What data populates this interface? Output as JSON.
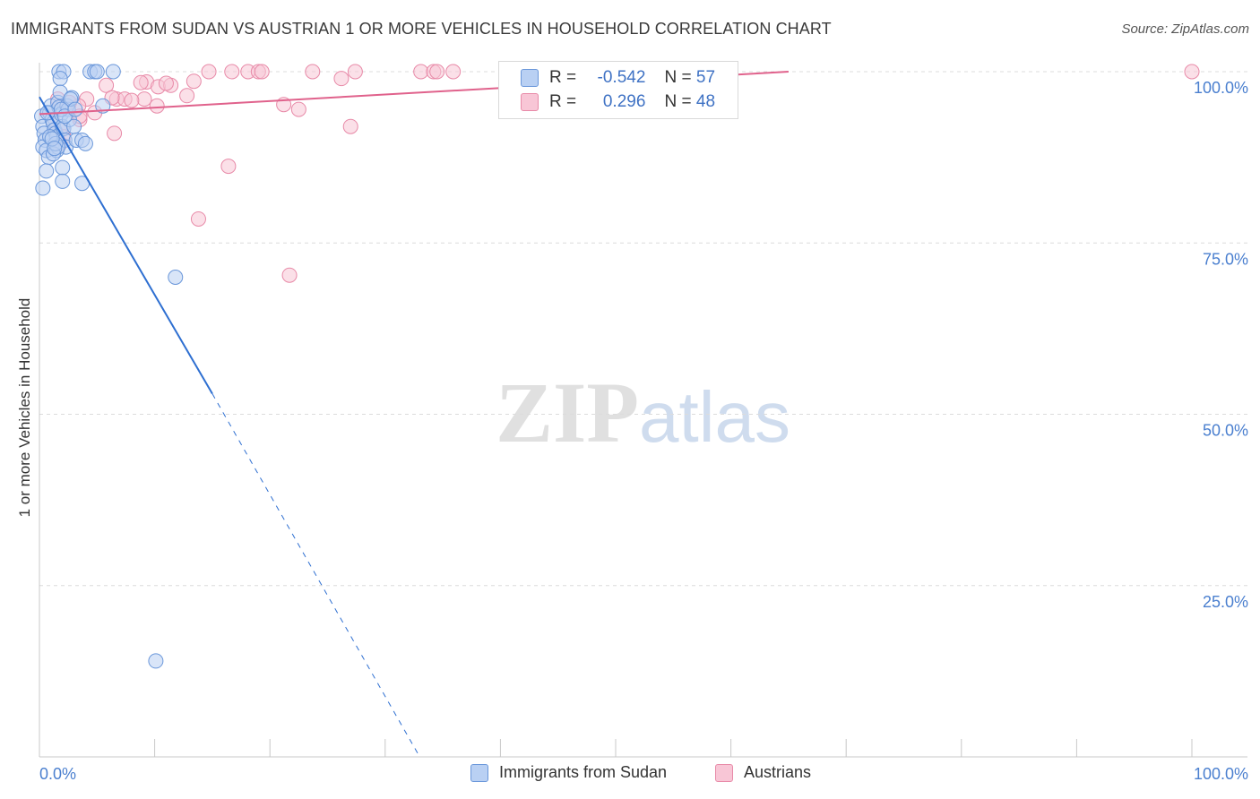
{
  "title": "IMMIGRANTS FROM SUDAN VS AUSTRIAN 1 OR MORE VEHICLES IN HOUSEHOLD CORRELATION CHART",
  "source": "Source: ZipAtlas.com",
  "watermark": {
    "zip": "ZIP",
    "atlas": "atlas"
  },
  "colors": {
    "blue_fill": "#b9d0f3",
    "blue_stroke": "#6a97da",
    "blue_line": "#2e6fd1",
    "pink_fill": "#f8c6d6",
    "pink_stroke": "#e88aa8",
    "pink_line": "#e0628c",
    "tick_text": "#4a7fcf",
    "grid": "#dcdcdc"
  },
  "stats_box": {
    "rows": [
      {
        "r_label": "R =",
        "r_value": "-0.542",
        "n_label": "N =",
        "n_value": "57",
        "series": "blue"
      },
      {
        "r_label": "R =",
        "r_value": "0.296",
        "n_label": "N =",
        "n_value": "48",
        "series": "pink"
      }
    ]
  },
  "chart_data": {
    "type": "scatter",
    "title": "IMMIGRANTS FROM SUDAN VS AUSTRIAN 1 OR MORE VEHICLES IN HOUSEHOLD CORRELATION CHART",
    "xlabel": "",
    "ylabel": "1 or more Vehicles in Household",
    "x_tick_labels": [
      "0.0%",
      "100.0%"
    ],
    "y_tick_labels": [
      "100.0%",
      "75.0%",
      "50.0%",
      "25.0%"
    ],
    "y_ticks": [
      100,
      75,
      50,
      25
    ],
    "xlim": [
      0,
      100
    ],
    "ylim": [
      0,
      102
    ],
    "grid": true,
    "legend_position": "bottom-center",
    "series": [
      {
        "name": "Immigrants from Sudan",
        "color": "blue",
        "trend": {
          "x0": 0,
          "y0": 96.3,
          "x1": 15,
          "y1": 53,
          "dashed_to_x": 33,
          "dashed_to_y": 0
        },
        "points": [
          [
            1.7,
            100
          ],
          [
            2.1,
            100
          ],
          [
            4.4,
            100
          ],
          [
            4.8,
            100
          ],
          [
            5.0,
            100
          ],
          [
            6.4,
            100
          ],
          [
            1.8,
            99
          ],
          [
            0.2,
            93.5
          ],
          [
            0.3,
            92
          ],
          [
            0.4,
            91
          ],
          [
            0.5,
            90
          ],
          [
            0.3,
            89
          ],
          [
            0.6,
            88.5
          ],
          [
            0.8,
            87.5
          ],
          [
            0.9,
            94
          ],
          [
            1.0,
            95
          ],
          [
            1.1,
            93
          ],
          [
            1.2,
            92.5
          ],
          [
            1.3,
            91.5
          ],
          [
            1.4,
            91
          ],
          [
            1.5,
            90.5
          ],
          [
            1.6,
            95.5
          ],
          [
            1.7,
            94.8
          ],
          [
            1.9,
            93.8
          ],
          [
            2.0,
            92
          ],
          [
            2.1,
            91.7
          ],
          [
            2.2,
            90
          ],
          [
            2.3,
            89
          ],
          [
            2.4,
            95
          ],
          [
            2.5,
            94.5
          ],
          [
            2.6,
            93
          ],
          [
            1.5,
            88.5
          ],
          [
            1.6,
            89
          ],
          [
            1.8,
            97
          ],
          [
            2.8,
            96.2
          ],
          [
            3.0,
            92
          ],
          [
            3.2,
            90
          ],
          [
            3.7,
            90
          ],
          [
            4.0,
            89.5
          ],
          [
            5.5,
            95
          ],
          [
            0.6,
            85.5
          ],
          [
            2.0,
            86
          ],
          [
            2.0,
            84
          ],
          [
            3.7,
            83.7
          ],
          [
            0.3,
            83
          ],
          [
            1.2,
            88
          ],
          [
            0.9,
            90.5
          ],
          [
            1.4,
            89.5
          ],
          [
            2.7,
            96
          ],
          [
            0.7,
            94
          ],
          [
            1.9,
            94.5
          ],
          [
            2.2,
            93.5
          ],
          [
            1.1,
            90.2
          ],
          [
            1.3,
            88.8
          ],
          [
            3.1,
            94.5
          ],
          [
            11.8,
            70
          ],
          [
            10.1,
            14
          ]
        ]
      },
      {
        "name": "Austrians",
        "color": "pink",
        "trend": {
          "x0": 0,
          "y0": 93.8,
          "x1": 65,
          "y1": 100
        },
        "points": [
          [
            14.7,
            100
          ],
          [
            16.7,
            100
          ],
          [
            18.1,
            100
          ],
          [
            19.0,
            100
          ],
          [
            19.3,
            100
          ],
          [
            23.7,
            100
          ],
          [
            27.4,
            100
          ],
          [
            33.1,
            100
          ],
          [
            34.2,
            100
          ],
          [
            34.5,
            100
          ],
          [
            35.9,
            100
          ],
          [
            44.0,
            100
          ],
          [
            47.0,
            100
          ],
          [
            100,
            100
          ],
          [
            9.3,
            98.5
          ],
          [
            8.8,
            98.4
          ],
          [
            10.3,
            97.8
          ],
          [
            11.4,
            98
          ],
          [
            13.4,
            98.6
          ],
          [
            5.8,
            98
          ],
          [
            26.2,
            99
          ],
          [
            11.0,
            98.3
          ],
          [
            4.1,
            96
          ],
          [
            6.7,
            96
          ],
          [
            7.4,
            96
          ],
          [
            9.1,
            96
          ],
          [
            8.0,
            95.8
          ],
          [
            10.2,
            95
          ],
          [
            12.8,
            96.5
          ],
          [
            21.2,
            95.2
          ],
          [
            22.5,
            94.5
          ],
          [
            3.4,
            95
          ],
          [
            1.6,
            96
          ],
          [
            6.3,
            96.2
          ],
          [
            2.6,
            95.5
          ],
          [
            4.8,
            94
          ],
          [
            3.5,
            93
          ],
          [
            1.2,
            92.5
          ],
          [
            6.5,
            91
          ],
          [
            1.9,
            91.5
          ],
          [
            2.1,
            90.5
          ],
          [
            1.8,
            89.5
          ],
          [
            27.0,
            92
          ],
          [
            16.4,
            86.2
          ],
          [
            13.8,
            78.5
          ],
          [
            21.7,
            70.3
          ],
          [
            3.5,
            93.5
          ],
          [
            1.4,
            91.2
          ]
        ]
      }
    ]
  },
  "legend": {
    "items": [
      {
        "label": "Immigrants from Sudan",
        "color": "blue"
      },
      {
        "label": "Austrians",
        "color": "pink"
      }
    ]
  }
}
